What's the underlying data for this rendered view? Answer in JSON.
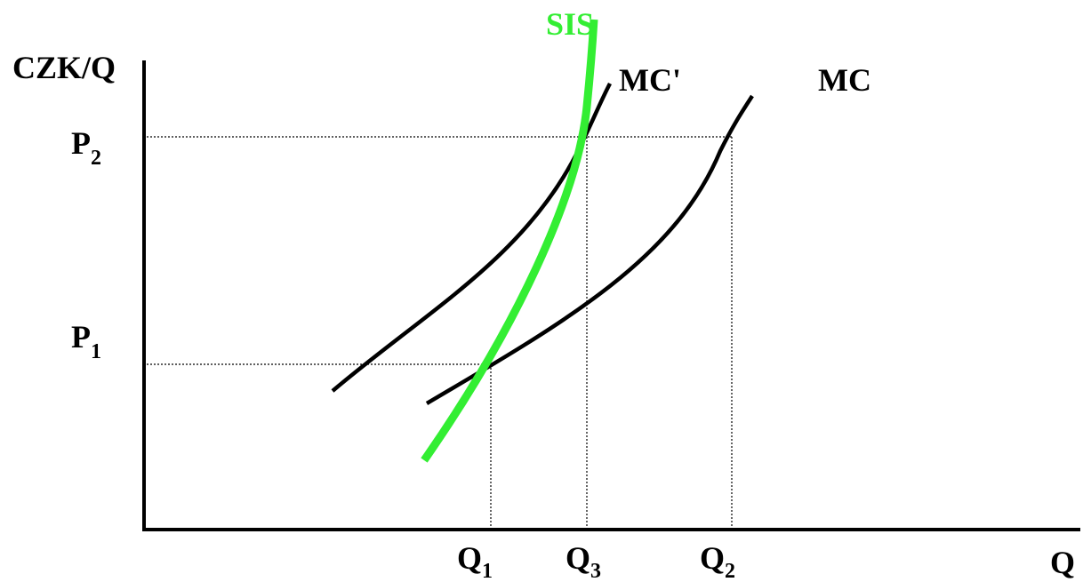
{
  "axes": {
    "y_label": "CZK/Q",
    "x_label": "Q"
  },
  "curves": {
    "sis": {
      "label": "SIS",
      "color": "#33ee33"
    },
    "mc_prime": {
      "label": "MC'",
      "color": "#000000"
    },
    "mc": {
      "label": "MC",
      "color": "#000000"
    }
  },
  "ticks": {
    "p1": {
      "base": "P",
      "sub": "1"
    },
    "p2": {
      "base": "P",
      "sub": "2"
    },
    "q1": {
      "base": "Q",
      "sub": "1"
    },
    "q3": {
      "base": "Q",
      "sub": "3"
    },
    "q2": {
      "base": "Q",
      "sub": "2"
    }
  }
}
